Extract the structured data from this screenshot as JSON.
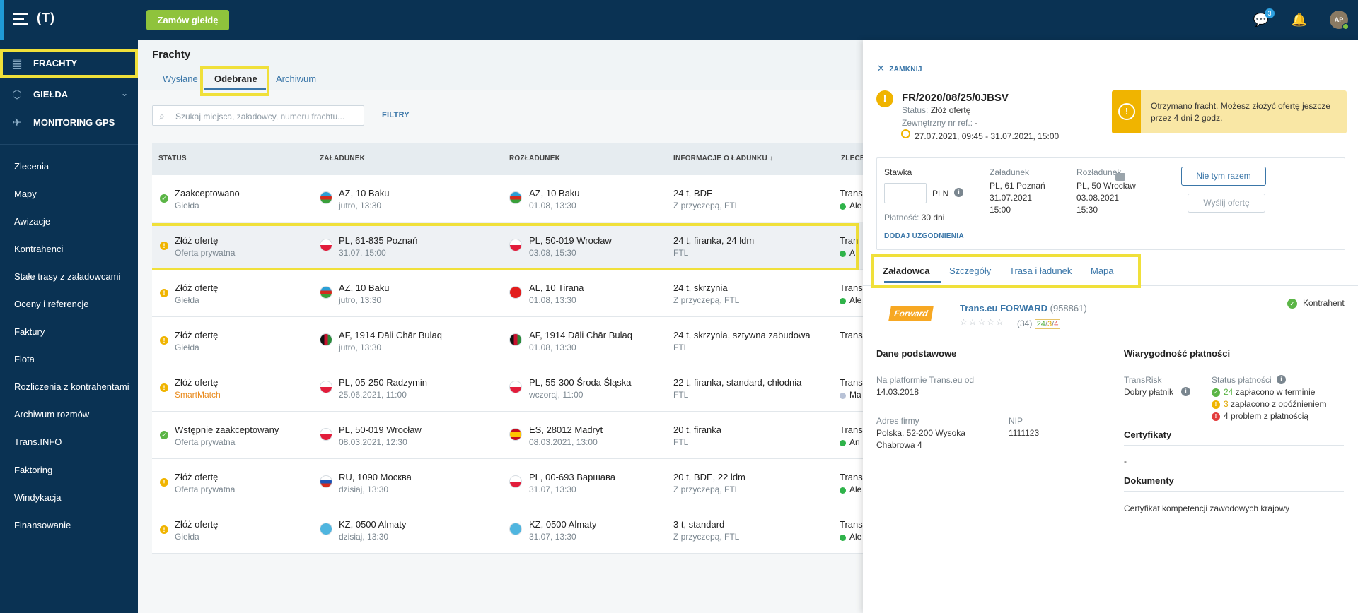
{
  "topbar": {
    "logo": "(T)",
    "order_button": "Zamów giełdę",
    "messages_badge": "3",
    "avatar_initials": "AP"
  },
  "sidebar": {
    "main": [
      {
        "label": "FRACHTY",
        "icon": "freight-icon",
        "active": true
      },
      {
        "label": "GIEŁDA",
        "icon": "box-icon",
        "has_chevron": true
      },
      {
        "label": "MONITORING GPS",
        "icon": "satellite-icon"
      }
    ],
    "items": [
      "Zlecenia",
      "Mapy",
      "Awizacje",
      "Kontrahenci",
      "Stałe trasy z załadowcami",
      "Oceny i referencje",
      "Faktury",
      "Flota",
      "Rozliczenia z kontrahentami",
      "Archiwum rozmów",
      "Trans.INFO",
      "Faktoring",
      "Windykacja",
      "Finansowanie"
    ]
  },
  "main": {
    "title": "Frachty",
    "tabs": [
      "Wysłane",
      "Odebrane",
      "Archiwum"
    ],
    "active_tab": "Odebrane",
    "search_placeholder": "Szukaj miejsca, załadowcy, numeru frachtu...",
    "filters_label": "FILTRY",
    "columns": [
      "STATUS",
      "ZAŁADUNEK",
      "ROZŁADUNEK",
      "INFORMACJE O ŁADUNKU ↓",
      "ZLECEN"
    ],
    "rows": [
      {
        "status": "Zaakceptowano",
        "sub": "Giełda",
        "icon": "ok",
        "load": "AZ, 10 Baku",
        "load_time": "jutro, 13:30",
        "load_flag": "az",
        "unload": "AZ, 10 Baku",
        "unload_time": "01.08, 13:30",
        "unload_flag": "az",
        "cargo": "24 t, BDE",
        "cargo_sub": "Z przyczepą, FTL",
        "client": "Trans",
        "client2": "Ale",
        "dot": "#2fb34a"
      },
      {
        "status": "Złóż ofertę",
        "sub": "Oferta prywatna",
        "icon": "warn",
        "load": "PL, 61-835 Poznań",
        "load_time": "31.07, 15:00",
        "load_flag": "pl",
        "unload": "PL, 50-019 Wrocław",
        "unload_time": "03.08, 15:30",
        "unload_flag": "pl",
        "cargo": "24 t, firanka, 24 ldm",
        "cargo_sub": "FTL",
        "client": "Tran",
        "client2": "A",
        "dot": "#2fb34a",
        "selected": true
      },
      {
        "status": "Złóż ofertę",
        "sub": "Giełda",
        "icon": "warn",
        "load": "AZ, 10 Baku",
        "load_time": "jutro, 13:30",
        "load_flag": "az",
        "unload": "AL, 10 Tirana",
        "unload_time": "01.08, 13:30",
        "unload_flag": "al",
        "cargo": "24 t, skrzynia",
        "cargo_sub": "Z przyczepą, FTL",
        "client": "Trans",
        "client2": "Ale",
        "dot": "#2fb34a"
      },
      {
        "status": "Złóż ofertę",
        "sub": "Giełda",
        "icon": "warn",
        "load": "AF, 1914 Dāli Chār Bulaq",
        "load_time": "jutro, 13:30",
        "load_flag": "af",
        "unload": "AF, 1914 Dāli Chār Bulaq",
        "unload_time": "01.08, 13:30",
        "unload_flag": "af",
        "cargo": "24 t, skrzynia, sztywna zabudowa",
        "cargo_sub": "FTL",
        "client": "Trans",
        "client2": "",
        "dot": ""
      },
      {
        "status": "Złóż ofertę",
        "sub": "SmartMatch",
        "sub_orange": true,
        "icon": "warn",
        "load": "PL, 05-250 Radzymin",
        "load_time": "25.06.2021, 11:00",
        "load_flag": "pl",
        "unload": "PL, 55-300 Środa Śląska",
        "unload_time": "wczoraj, 11:00",
        "unload_flag": "pl",
        "cargo": "22 t, firanka, standard, chłodnia",
        "cargo_sub": "FTL",
        "client": "Trans",
        "client2": "Ma",
        "dot": "#b8c2d6"
      },
      {
        "status": "Wstępnie zaakceptowany",
        "sub": "Oferta prywatna",
        "icon": "ok",
        "load": "PL, 50-019 Wrocław",
        "load_time": "08.03.2021, 12:30",
        "load_flag": "pl",
        "unload": "ES, 28012 Madryt",
        "unload_time": "08.03.2021, 13:00",
        "unload_flag": "es",
        "cargo": "20 t, firanka",
        "cargo_sub": "FTL",
        "client": "Trans",
        "client2": "An",
        "dot": "#2fb34a"
      },
      {
        "status": "Złóż ofertę",
        "sub": "Oferta prywatna",
        "icon": "warn",
        "load": "RU, 1090 Москва",
        "load_time": "dzisiaj, 13:30",
        "load_flag": "ru",
        "unload": "PL, 00-693 Варшава",
        "unload_time": "31.07, 13:30",
        "unload_flag": "pl",
        "cargo": "20 t, BDE, 22 ldm",
        "cargo_sub": "Z przyczepą, FTL",
        "client": "Trans",
        "client2": "Ale",
        "dot": "#2fb34a"
      },
      {
        "status": "Złóż ofertę",
        "sub": "Giełda",
        "icon": "warn",
        "load": "KZ, 0500 Almaty",
        "load_time": "dzisiaj, 13:30",
        "load_flag": "kz",
        "unload": "KZ, 0500 Almaty",
        "unload_time": "31.07, 13:30",
        "unload_flag": "kz",
        "cargo": "3 t, standard",
        "cargo_sub": "Z przyczepą, FTL",
        "client": "Trans",
        "client2": "Ale",
        "dot": "#2fb34a"
      }
    ]
  },
  "panel": {
    "close_label": "ZAMKNIJ",
    "freight_number": "FR/2020/08/25/0JBSV",
    "status_label": "Status:",
    "status_value": "Złóż ofertę",
    "ext_ref_label": "Zewnętrzny nr ref.:",
    "ext_ref_value": "-",
    "date_range": "27.07.2021, 09:45 - 31.07.2021, 15:00",
    "alert_text": "Otrzymano fracht. Możesz złożyć ofertę jeszcze przez 4 dni 2 godz.",
    "offer": {
      "rate_label": "Stawka",
      "currency": "PLN",
      "payment_label": "Płatność:",
      "payment_value": "30 dni",
      "add_link": "DODAJ UZGODNIENIA",
      "load_label": "Załadunek",
      "load_place": "PL, 61 Poznań",
      "load_date": "31.07.2021",
      "load_hour": "15:00",
      "unload_label": "Rozładunek",
      "unload_place": "PL, 50 Wrocław",
      "unload_date": "03.08.2021",
      "unload_hour": "15:30",
      "decline_button": "Nie tym razem",
      "send_button": "Wyślij ofertę"
    },
    "tabs": [
      "Załadowca",
      "Szczegóły",
      "Trasa i ładunek",
      "Mapa"
    ],
    "active_tab": "Załadowca",
    "company": {
      "logo_text": "Forward",
      "name": "Trans.eu FORWARD",
      "id": "(958861)",
      "stars": "☆☆☆☆☆",
      "reviews": "(34)",
      "r_green": "24",
      "r_yellow": "3",
      "r_red": "4",
      "contractor_label": "Kontrahent"
    },
    "basic": {
      "title": "Dane podstawowe",
      "since_label": "Na platformie Trans.eu od",
      "since_value": "14.03.2018",
      "address_label": "Adres firmy",
      "address_line1": "Polska, 52-200 Wysoka",
      "address_line2": "Chabrowa 4",
      "nip_label": "NIP",
      "nip_value": "1111123"
    },
    "payment": {
      "title": "Wiarygodność płatności",
      "transrisk_label": "TransRisk",
      "transrisk_value": "Dobry płatnik",
      "status_label": "Status płatności",
      "on_time_n": "24",
      "on_time": "zapłacono w terminie",
      "late_n": "3",
      "late": "zapłacono z opóźnieniem",
      "problem_n": "4",
      "problem": "problem z płatnością"
    },
    "certs": {
      "title": "Certyfikaty",
      "value": "-"
    },
    "docs": {
      "title": "Dokumenty",
      "value": "Certyfikat kompetencji zawodowych krajowy"
    }
  }
}
